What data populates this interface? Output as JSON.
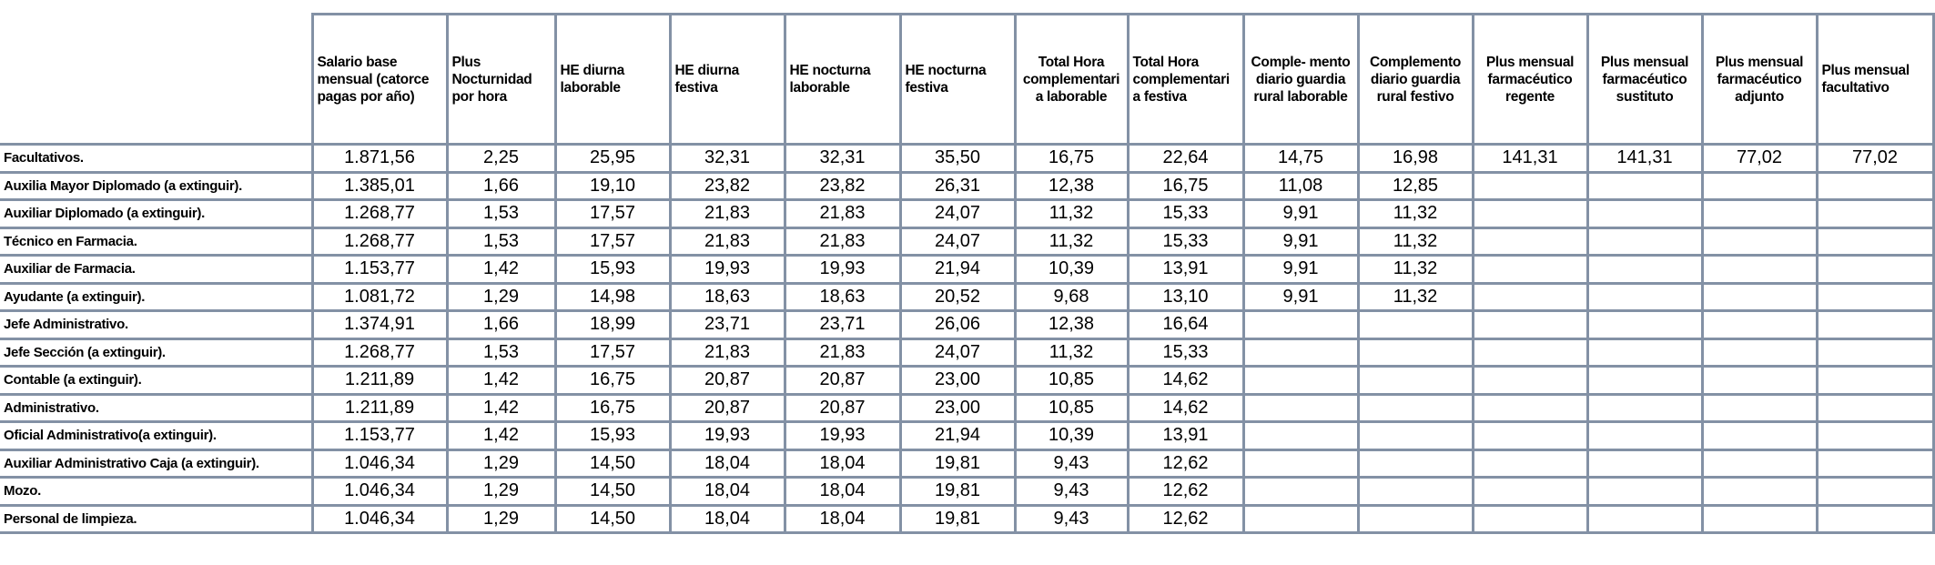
{
  "table": {
    "header": [
      "Salario base mensual (catorce pagas por año)",
      "Plus Nocturnidad por hora",
      "HE diurna laborable",
      "HE diurna festiva",
      "HE nocturna laborable",
      "HE nocturna festiva",
      "Total Hora complementari a laborable",
      "Total Hora complementari a festiva",
      "Comple- mento diario guardia rural laborable",
      "Complemento diario guardia rural festivo",
      "Plus mensual farmacéutico regente",
      "Plus mensual farmacéutico sustituto",
      "Plus mensual farmacéutico adjunto",
      "Plus mensual facultativo"
    ],
    "rows": [
      {
        "label": "Facultativos.",
        "values": [
          "1.871,56",
          "2,25",
          "25,95",
          "32,31",
          "32,31",
          "35,50",
          "16,75",
          "22,64",
          "14,75",
          "16,98",
          "141,31",
          "141,31",
          "77,02",
          "77,02"
        ]
      },
      {
        "label": "Auxilia Mayor Diplomado (a extinguir).",
        "values": [
          "1.385,01",
          "1,66",
          "19,10",
          "23,82",
          "23,82",
          "26,31",
          "12,38",
          "16,75",
          "11,08",
          "12,85"
        ]
      },
      {
        "label": "Auxiliar Diplomado (a extinguir).",
        "values": [
          "1.268,77",
          "1,53",
          "17,57",
          "21,83",
          "21,83",
          "24,07",
          "11,32",
          "15,33",
          "9,91",
          "11,32"
        ]
      },
      {
        "label": "Técnico en Farmacia.",
        "values": [
          "1.268,77",
          "1,53",
          "17,57",
          "21,83",
          "21,83",
          "24,07",
          "11,32",
          "15,33",
          "9,91",
          "11,32"
        ]
      },
      {
        "label": "Auxiliar de Farmacia.",
        "values": [
          "1.153,77",
          "1,42",
          "15,93",
          "19,93",
          "19,93",
          "21,94",
          "10,39",
          "13,91",
          "9,91",
          "11,32"
        ]
      },
      {
        "label": "Ayudante (a extinguir).",
        "values": [
          "1.081,72",
          "1,29",
          "14,98",
          "18,63",
          "18,63",
          "20,52",
          "9,68",
          "13,10",
          "9,91",
          "11,32"
        ]
      },
      {
        "label": "Jefe Administrativo.",
        "values": [
          "1.374,91",
          "1,66",
          "18,99",
          "23,71",
          "23,71",
          "26,06",
          "12,38",
          "16,64"
        ]
      },
      {
        "label": "Jefe Sección (a extinguir).",
        "values": [
          "1.268,77",
          "1,53",
          "17,57",
          "21,83",
          "21,83",
          "24,07",
          "11,32",
          "15,33"
        ]
      },
      {
        "label": "Contable (a extinguir).",
        "values": [
          "1.211,89",
          "1,42",
          "16,75",
          "20,87",
          "20,87",
          "23,00",
          "10,85",
          "14,62"
        ]
      },
      {
        "label": "Administrativo.",
        "values": [
          "1.211,89",
          "1,42",
          "16,75",
          "20,87",
          "20,87",
          "23,00",
          "10,85",
          "14,62"
        ]
      },
      {
        "label": "Oficial Administrativo(a extinguir).",
        "values": [
          "1.153,77",
          "1,42",
          "15,93",
          "19,93",
          "19,93",
          "21,94",
          "10,39",
          "13,91"
        ]
      },
      {
        "label": "Auxiliar Administrativo Caja (a extinguir).",
        "values": [
          "1.046,34",
          "1,29",
          "14,50",
          "18,04",
          "18,04",
          "19,81",
          "9,43",
          "12,62"
        ]
      },
      {
        "label": "Mozo.",
        "values": [
          "1.046,34",
          "1,29",
          "14,50",
          "18,04",
          "18,04",
          "19,81",
          "9,43",
          "12,62"
        ]
      },
      {
        "label": "Personal de limpieza.",
        "values": [
          "1.046,34",
          "1,29",
          "14,50",
          "18,04",
          "18,04",
          "19,81",
          "9,43",
          "12,62"
        ]
      }
    ]
  }
}
